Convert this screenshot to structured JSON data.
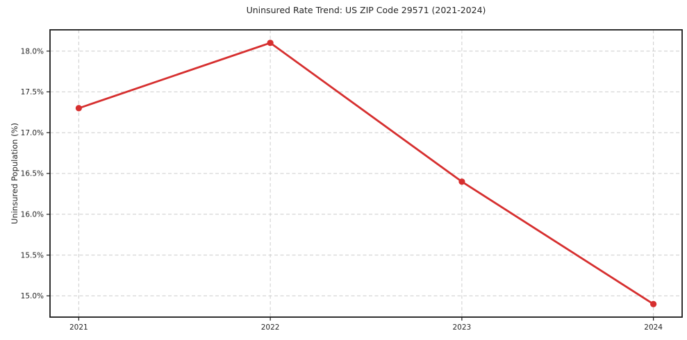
{
  "chart_data": {
    "type": "line",
    "title": "Uninsured Rate Trend: US ZIP Code 29571 (2021-2024)",
    "xlabel": "",
    "ylabel": "Uninsured Population (%)",
    "x": [
      2021,
      2022,
      2023,
      2024
    ],
    "x_tick_labels": [
      "2021",
      "2022",
      "2023",
      "2024"
    ],
    "values": [
      17.3,
      18.1,
      16.4,
      14.9
    ],
    "y_ticks": [
      15.0,
      15.5,
      16.0,
      16.5,
      17.0,
      17.5,
      18.0
    ],
    "y_tick_labels": [
      "15.0%",
      "15.5%",
      "16.0%",
      "16.5%",
      "17.0%",
      "17.5%",
      "18.0%"
    ],
    "xlim": [
      2020.85,
      2024.15
    ],
    "ylim": [
      14.74,
      18.26
    ],
    "grid": true,
    "grid_style": "dashed",
    "legend_position": "none",
    "colors": {
      "line": "#d62f2f",
      "marker": "#d62f2f",
      "grid": "#cccccc",
      "spine": "#1a1a1a",
      "text": "#262626",
      "background": "#ffffff"
    }
  }
}
